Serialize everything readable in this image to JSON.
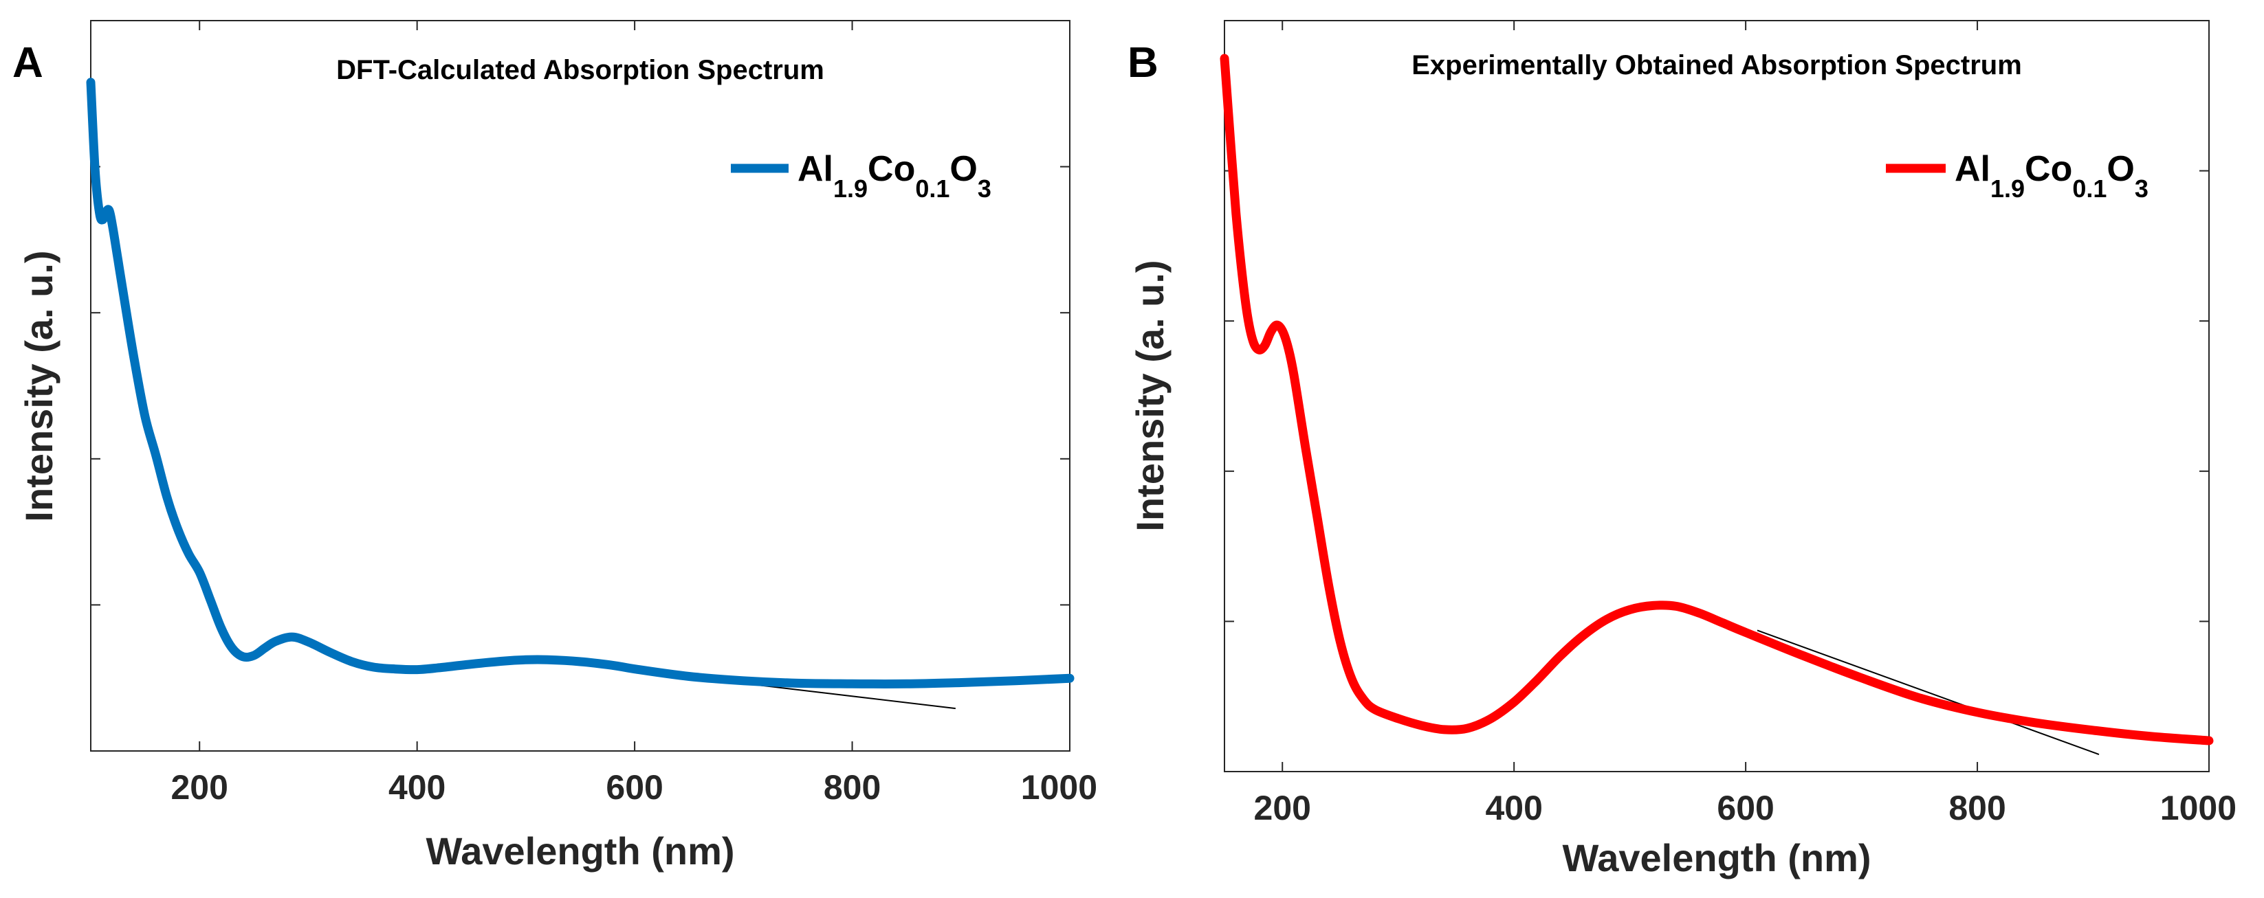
{
  "chart_data": [
    {
      "type": "line",
      "panel_label": "A",
      "title": "DFT-Calculated Absorption Spectrum",
      "xlabel": "Wavelength (nm)",
      "ylabel": "Intensity (a. u.)",
      "xlim": [
        100,
        1000
      ],
      "ylim": [
        0,
        1
      ],
      "xticks": [
        200,
        400,
        600,
        800,
        1000
      ],
      "yticks_count": 4,
      "legend": {
        "base": "Al",
        "sub1": "1.9",
        "mid": "Co",
        "sub2": "0.1",
        "tail": "O",
        "sub3": "3",
        "position": "top-right"
      },
      "color": "#0072BD",
      "series": [
        {
          "name": "Al1.9Co0.1O3",
          "x": [
            100,
            104,
            108,
            111,
            114,
            117,
            120,
            125,
            130,
            140,
            150,
            160,
            170,
            180,
            190,
            200,
            210,
            220,
            230,
            240,
            250,
            260,
            270,
            285,
            300,
            320,
            340,
            360,
            380,
            400,
            420,
            450,
            480,
            500,
            520,
            550,
            580,
            600,
            650,
            700,
            750,
            800,
            850,
            900,
            950,
            1000
          ],
          "y": [
            0.998,
            0.855,
            0.786,
            0.775,
            0.788,
            0.79,
            0.765,
            0.71,
            0.655,
            0.548,
            0.455,
            0.392,
            0.325,
            0.273,
            0.233,
            0.203,
            0.158,
            0.112,
            0.08,
            0.066,
            0.068,
            0.08,
            0.091,
            0.098,
            0.09,
            0.073,
            0.058,
            0.049,
            0.046,
            0.045,
            0.048,
            0.054,
            0.059,
            0.061,
            0.061,
            0.058,
            0.052,
            0.046,
            0.034,
            0.027,
            0.023,
            0.022,
            0.022,
            0.024,
            0.027,
            0.031
          ]
        }
      ],
      "tangent_line": {
        "x": [
          570,
          895
        ],
        "y": [
          0.05,
          -0.018
        ]
      }
    },
    {
      "type": "line",
      "panel_label": "B",
      "title": "Experimentally Obtained Absorption Spectrum",
      "xlabel": "Wavelength (nm)",
      "ylabel": "Intensity (a. u.)",
      "xlim": [
        150,
        1000
      ],
      "ylim": [
        0,
        1
      ],
      "xticks": [
        200,
        400,
        600,
        800,
        1000
      ],
      "yticks_count": 4,
      "legend": {
        "base": "Al",
        "sub1": "1.9",
        "mid": "Co",
        "sub2": "0.1",
        "tail": "O",
        "sub3": "3",
        "position": "top-right"
      },
      "color": "#FF0000",
      "series": [
        {
          "name": "Al1.9Co0.1O3",
          "x": [
            150,
            155,
            160,
            165,
            170,
            175,
            180,
            185,
            190,
            195,
            200,
            205,
            210,
            220,
            230,
            240,
            250,
            260,
            270,
            280,
            300,
            320,
            340,
            360,
            380,
            400,
            420,
            440,
            460,
            480,
            500,
            520,
            540,
            560,
            580,
            600,
            650,
            700,
            750,
            800,
            850,
            900,
            950,
            1000
          ],
          "y": [
            1.005,
            0.89,
            0.78,
            0.695,
            0.63,
            0.593,
            0.582,
            0.589,
            0.608,
            0.618,
            0.61,
            0.585,
            0.545,
            0.44,
            0.34,
            0.24,
            0.158,
            0.104,
            0.075,
            0.06,
            0.047,
            0.037,
            0.031,
            0.033,
            0.047,
            0.071,
            0.103,
            0.138,
            0.168,
            0.191,
            0.205,
            0.211,
            0.21,
            0.2,
            0.186,
            0.172,
            0.138,
            0.106,
            0.077,
            0.056,
            0.041,
            0.03,
            0.021,
            0.015
          ]
        }
      ],
      "tangent_line": {
        "x": [
          610,
          905
        ],
        "y": [
          0.175,
          -0.005
        ]
      }
    }
  ]
}
